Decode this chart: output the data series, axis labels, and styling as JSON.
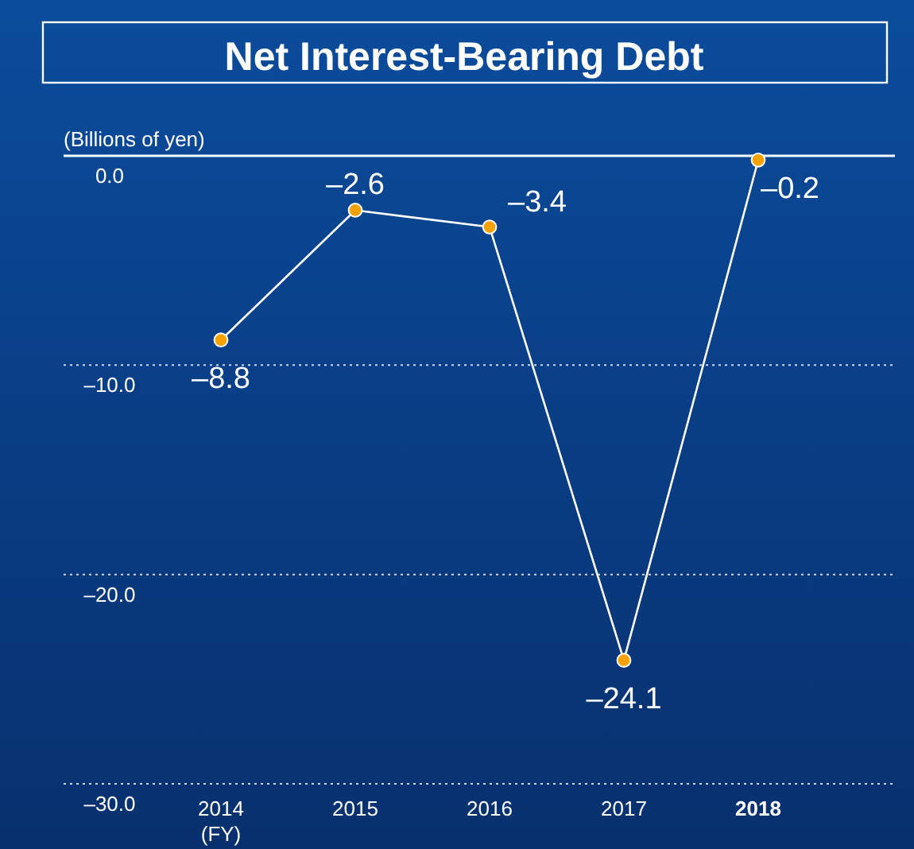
{
  "chart_data": {
    "type": "line",
    "title": "Net Interest-Bearing Debt",
    "ylabel": "(Billions of yen)",
    "xlabel": "(FY)",
    "categories": [
      "2014",
      "2015",
      "2016",
      "2017",
      "2018"
    ],
    "series": [
      {
        "color": "#ffffff",
        "values": [
          -8.8,
          -2.6,
          -3.4,
          -24.1,
          -0.2
        ],
        "value_labels": [
          "–8.8",
          "–2.6",
          "–3.4",
          "–24.1",
          "–0.2"
        ]
      }
    ],
    "ylim": [
      -30,
      0
    ],
    "yticks": [
      {
        "value": 0,
        "label": "0.0"
      },
      {
        "value": -10,
        "label": "–10.0"
      },
      {
        "value": -20,
        "label": "–20.0"
      },
      {
        "value": -30,
        "label": "–30.0"
      }
    ],
    "grid": "y",
    "marker": "circle",
    "line_style": "solid"
  }
}
